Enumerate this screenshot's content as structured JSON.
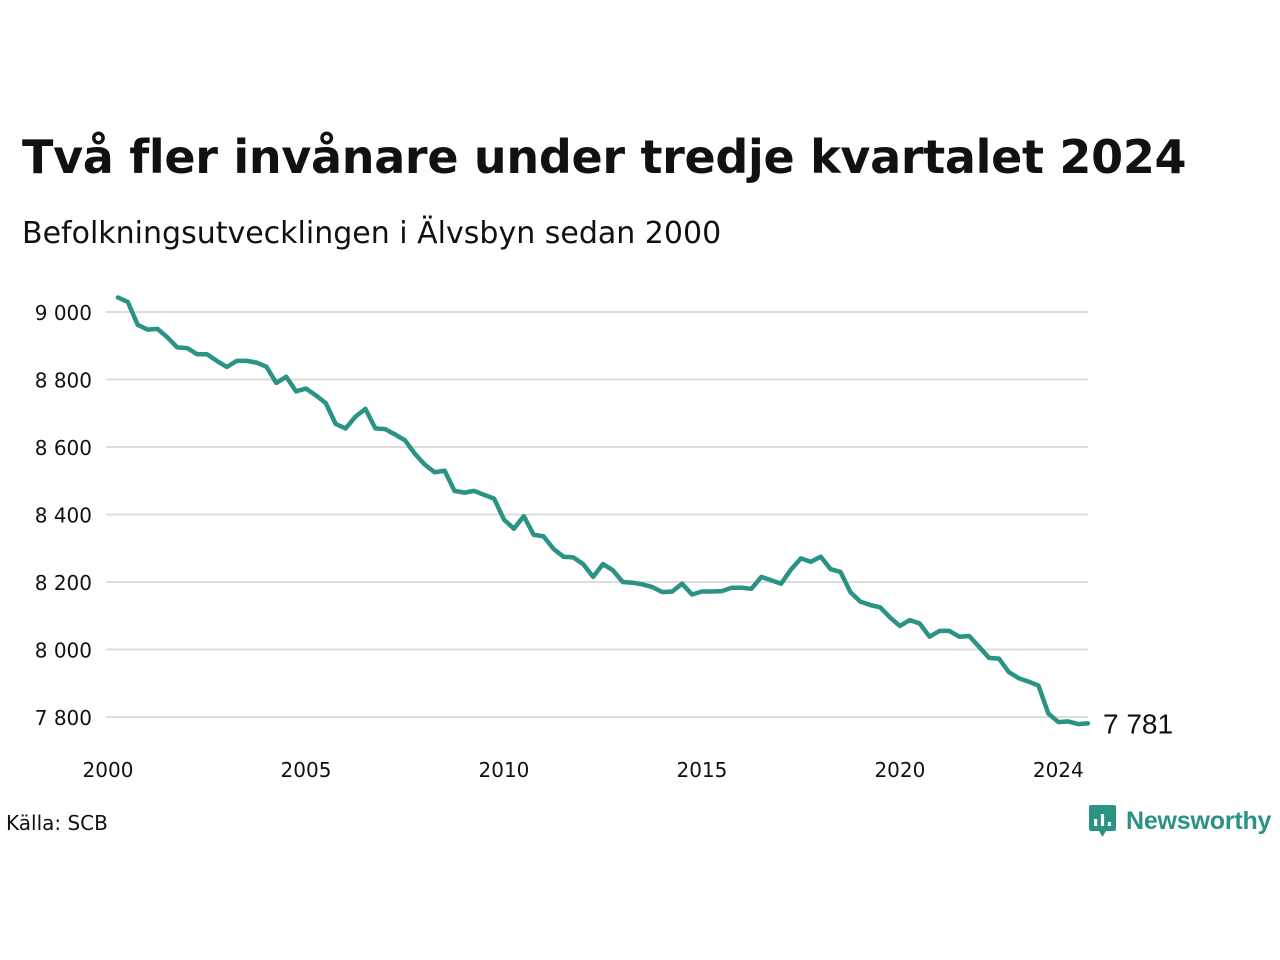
{
  "title": "Två fler invånare under tredje kvartalet 2024",
  "subtitle": "Befolkningsutvecklingen i Älvsbyn sedan 2000",
  "source": "Källa: SCB",
  "brand": {
    "name": "Newsworthy",
    "icon": "newsworthy-logo-icon",
    "color": "#2a9384"
  },
  "colors": {
    "line": "#2a9384",
    "grid": "#dcdcdc",
    "text": "#111111"
  },
  "chart_data": {
    "type": "line",
    "title": "Två fler invånare under tredje kvartalet 2024",
    "subtitle": "Befolkningsutvecklingen i Älvsbyn sedan 2000",
    "xlabel": "",
    "ylabel": "",
    "grid": true,
    "xlim": [
      2000,
      2024.75
    ],
    "ylim": [
      7760,
      9050
    ],
    "yticks": [
      9000,
      8800,
      8600,
      8400,
      8200,
      8000,
      7800
    ],
    "ytick_labels": [
      "9 000",
      "8 800",
      "8 600",
      "8 400",
      "8 200",
      "8 000",
      "7 800"
    ],
    "xticks": [
      2000,
      2005,
      2010,
      2015,
      2020,
      2024
    ],
    "xtick_labels": [
      "2000",
      "2005",
      "2010",
      "2015",
      "2020",
      "2024"
    ],
    "end_label": "7 781",
    "series": [
      {
        "x": [
          2000.25,
          2000.5,
          2000.75,
          2001,
          2001.25,
          2001.5,
          2001.75,
          2002,
          2002.25,
          2002.5,
          2002.75,
          2003,
          2003.25,
          2003.5,
          2003.75,
          2004,
          2004.25,
          2004.5,
          2004.75,
          2005,
          2005.25,
          2005.5,
          2005.75,
          2006,
          2006.25,
          2006.5,
          2006.75,
          2007,
          2007.25,
          2007.5,
          2007.75,
          2008,
          2008.25,
          2008.5,
          2008.75,
          2009,
          2009.25,
          2009.5,
          2009.75,
          2010,
          2010.25,
          2010.5,
          2010.75,
          2011,
          2011.25,
          2011.5,
          2011.75,
          2012,
          2012.25,
          2012.5,
          2012.75,
          2013,
          2013.25,
          2013.5,
          2013.75,
          2014,
          2014.25,
          2014.5,
          2014.75,
          2015,
          2015.25,
          2015.5,
          2015.75,
          2016,
          2016.25,
          2016.5,
          2016.75,
          2017,
          2017.25,
          2017.5,
          2017.75,
          2018,
          2018.25,
          2018.5,
          2018.75,
          2019,
          2019.25,
          2019.5,
          2019.75,
          2020,
          2020.25,
          2020.5,
          2020.75,
          2021,
          2021.25,
          2021.5,
          2021.75,
          2022,
          2022.25,
          2022.5,
          2022.75,
          2023,
          2023.25,
          2023.5,
          2023.75,
          2024,
          2024.25,
          2024.5,
          2024.75
        ],
        "values": [
          9043,
          9030,
          8962,
          8948,
          8950,
          8925,
          8895,
          8893,
          8875,
          8875,
          8855,
          8837,
          8855,
          8855,
          8850,
          8838,
          8790,
          8808,
          8765,
          8773,
          8753,
          8730,
          8668,
          8655,
          8690,
          8713,
          8655,
          8653,
          8637,
          8620,
          8580,
          8548,
          8525,
          8530,
          8470,
          8465,
          8470,
          8458,
          8447,
          8385,
          8358,
          8395,
          8340,
          8335,
          8298,
          8275,
          8273,
          8253,
          8215,
          8253,
          8235,
          8200,
          8198,
          8193,
          8185,
          8170,
          8172,
          8195,
          8163,
          8172,
          8172,
          8173,
          8183,
          8183,
          8180,
          8215,
          8205,
          8195,
          8237,
          8270,
          8260,
          8275,
          8238,
          8230,
          8170,
          8142,
          8132,
          8125,
          8095,
          8070,
          8087,
          8077,
          8038,
          8055,
          8055,
          8038,
          8040,
          8008,
          7975,
          7973,
          7933,
          7915,
          7905,
          7893,
          7810,
          7785,
          7787,
          7779,
          7781
        ]
      }
    ]
  }
}
